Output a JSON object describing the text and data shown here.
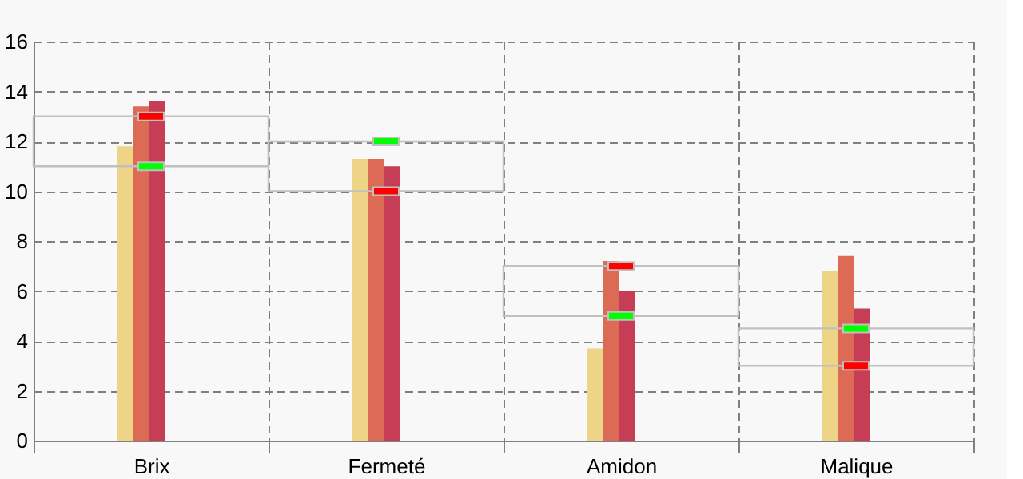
{
  "chart_data": {
    "type": "bar",
    "categories": [
      "Brix",
      "Fermeté",
      "Amidon",
      "Malique"
    ],
    "ylim": [
      0,
      16
    ],
    "yticks": [
      0,
      2,
      4,
      6,
      8,
      10,
      12,
      14,
      16
    ],
    "grid": true,
    "series": [
      {
        "color": "#edd486",
        "values": [
          11.8,
          11.3,
          3.7,
          6.8
        ]
      },
      {
        "color": "#dd6a55",
        "values": [
          13.4,
          11.3,
          7.2,
          7.4
        ]
      },
      {
        "color": "#c63d56",
        "values": [
          13.6,
          11.0,
          6.0,
          5.3
        ]
      },
      {
        "color": "#8b1a3a",
        "values": [
          0,
          0,
          0,
          0
        ]
      },
      {
        "type": "bar",
        "color": "#c0c0c0",
        "base": [
          11,
          10,
          5,
          3
        ],
        "values": [
          2,
          2,
          2,
          1.5
        ]
      },
      {
        "type": "scatter",
        "color": "#00ff00",
        "values": [
          11,
          12,
          5,
          4.5
        ]
      },
      {
        "type": "scatter",
        "color": "#ff0000",
        "values": [
          13,
          10,
          7,
          3
        ]
      }
    ]
  }
}
